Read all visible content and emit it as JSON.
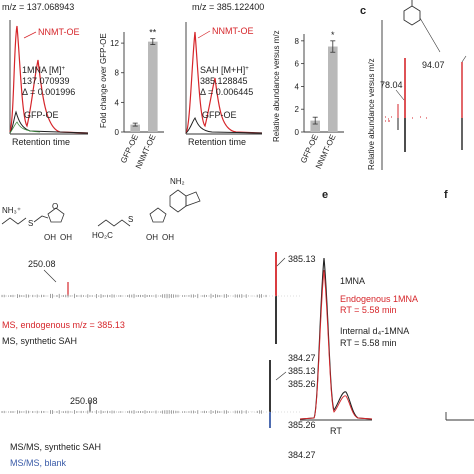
{
  "panel_a": {
    "mz_label": "m/z = 137.068943",
    "trace_red": "NNMT-OE",
    "peak_label_1": "1MNA [M]",
    "peak_label_sup": "+",
    "peak_mass": "137.070939",
    "delta": "Δ = 0.001996",
    "trace_black": "GFP-OE",
    "xlabel": "Retention time"
  },
  "panel_b_left": {
    "ylabel": "Fold change over GFP-OE",
    "categories": [
      "GFP-OE",
      "NNMT-OE"
    ],
    "values": [
      1,
      12.2
    ],
    "errors": [
      0.2,
      0.4
    ],
    "ticks": [
      "0",
      "4",
      "8",
      "12"
    ],
    "significance": "**"
  },
  "panel_a2": {
    "mz_label": "m/z = 385.122400",
    "trace_red": "NNMT-OE",
    "peak_label_1": "SAH [M+H]",
    "peak_label_sup": "+",
    "peak_mass": "385.128845",
    "delta": "Δ = 0.006445",
    "trace_black": "GFP-OE",
    "xlabel": "Retention time"
  },
  "panel_b_right": {
    "ylabel": "Relative abundance versus m/z",
    "categories": [
      "GFP-OE",
      "NNMT-OE"
    ],
    "values": [
      1,
      7.5
    ],
    "errors": [
      0.3,
      0.5
    ],
    "ticks": [
      "0",
      "2",
      "4",
      "6",
      "8"
    ],
    "significance": "*"
  },
  "panel_c": {
    "letter": "c",
    "ylabel": "Relative abundance versus m/z",
    "peak_1": "78.04",
    "peak_2": "94.07"
  },
  "panel_d": {
    "ms_label_1": "385.13",
    "ms_label_2": "250.08",
    "legend_endogenous": "MS, endogenous m/z = 385.13",
    "legend_synthetic": "MS, synthetic SAH",
    "lower_labels": [
      "384.27",
      "385.13",
      "385.26",
      "250.08",
      "385.26",
      "384.27"
    ],
    "legend_msms_synthetic": "MS/MS, synthetic SAH",
    "legend_msms_blank": "MS/MS, blank",
    "struct_charge": "NH₃⁺",
    "struct_nh2": "NH₂",
    "struct_oh1": "OH",
    "struct_oh2": "OH",
    "struct_s": "S",
    "struct_o": "O"
  },
  "panel_e": {
    "letter": "e",
    "title": "1MNA",
    "endogenous_1": "Endogenous 1MNA",
    "endogenous_rt": "RT = 5.58 min",
    "internal_1": "Internal d₄-1MNA",
    "internal_rt": "RT = 5.58 min",
    "xlabel": "RT"
  },
  "panel_f": {
    "letter": "f"
  },
  "colors": {
    "red": "#d6262b",
    "black": "#222222",
    "blue": "#3a5ba8",
    "bar": "#b9b9b9"
  }
}
